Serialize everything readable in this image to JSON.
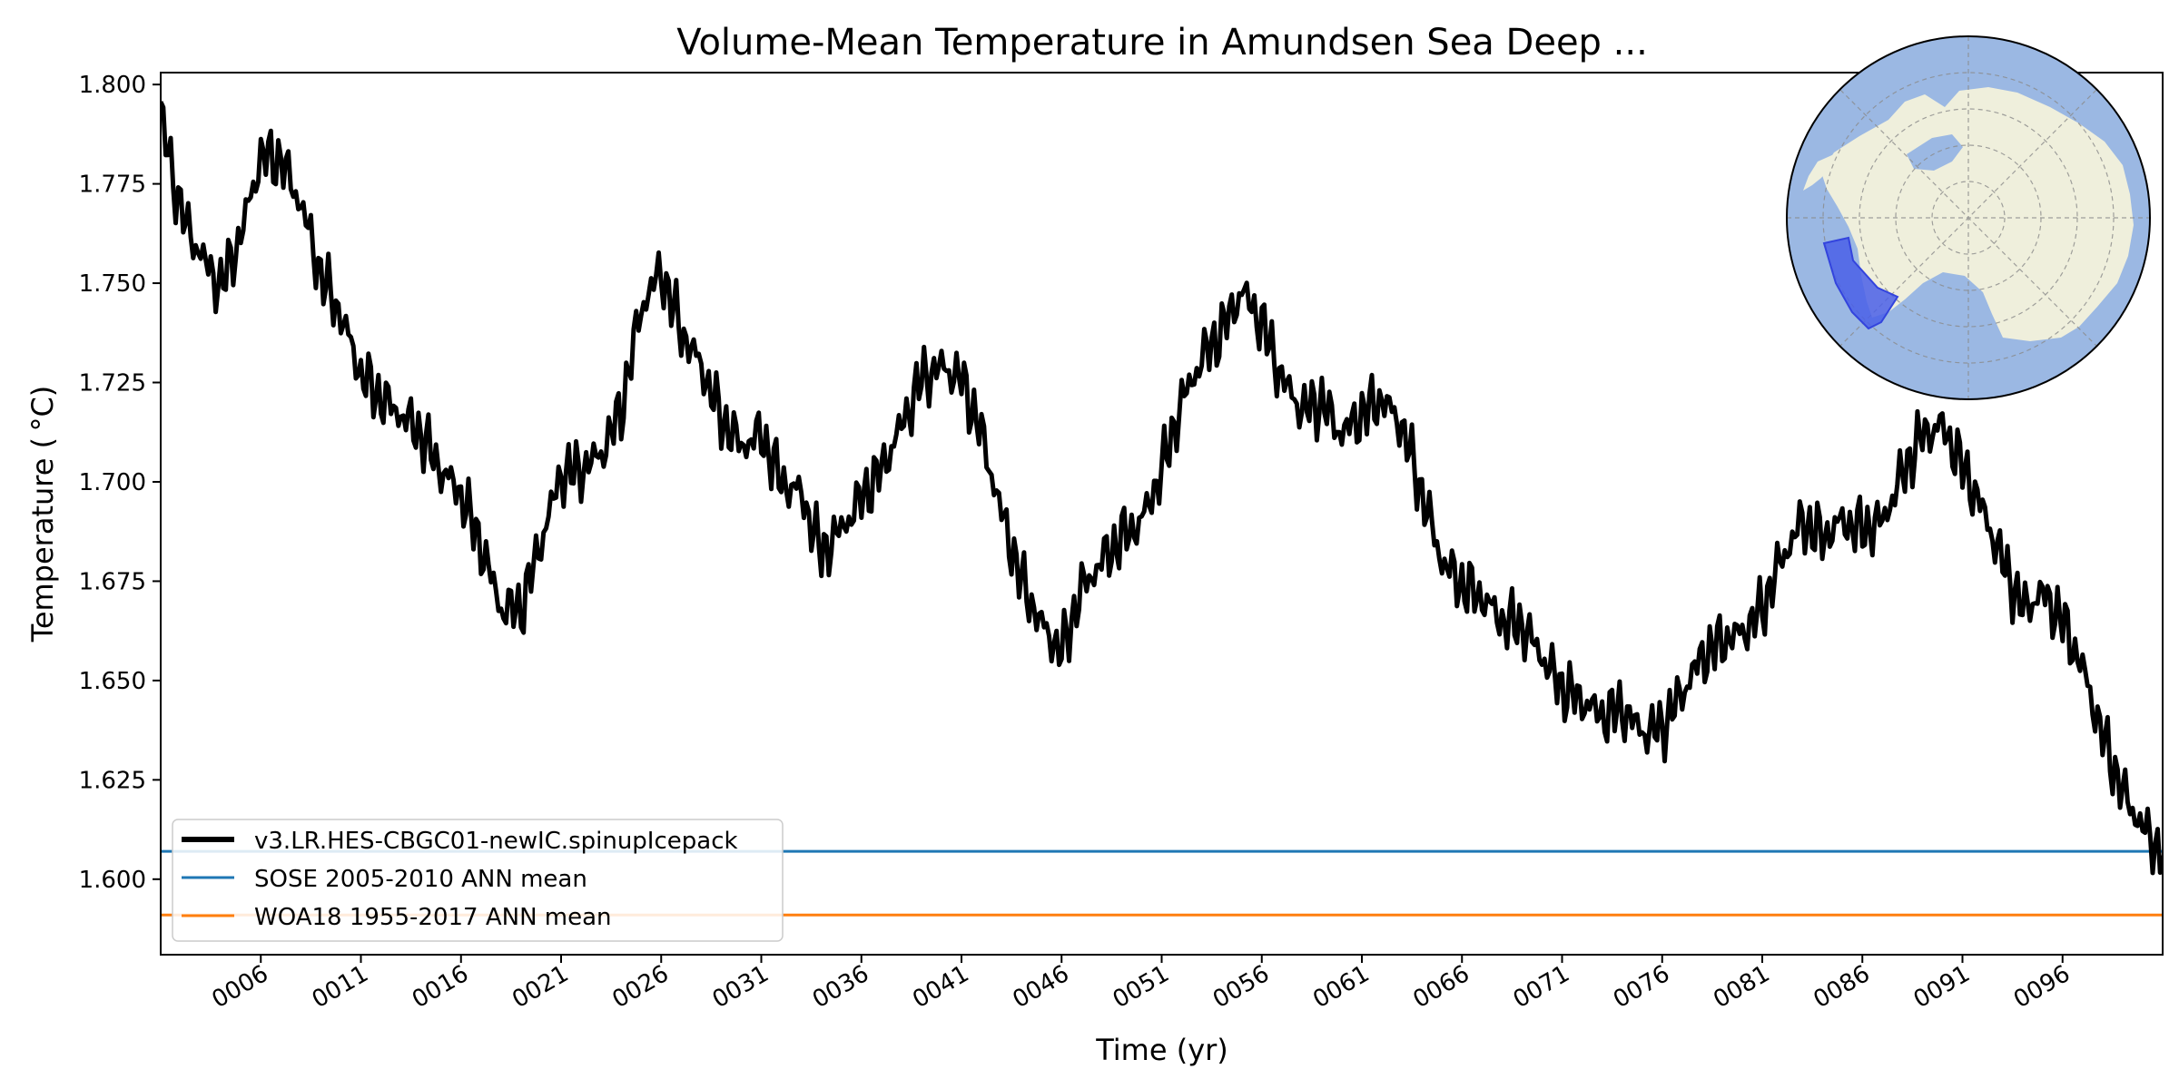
{
  "chart_data": {
    "type": "line",
    "title": "Volume-Mean Temperature in Amundsen Sea Deep ...",
    "xlabel": "Time (yr)",
    "ylabel": "Temperature ( °C)",
    "xlim": [
      1,
      101
    ],
    "ylim": [
      1.581,
      1.803
    ],
    "x_ticks": [
      6,
      11,
      16,
      21,
      26,
      31,
      36,
      41,
      46,
      51,
      56,
      61,
      66,
      71,
      76,
      81,
      86,
      91,
      96
    ],
    "x_tick_labels": [
      "0006",
      "0011",
      "0016",
      "0021",
      "0026",
      "0031",
      "0036",
      "0041",
      "0046",
      "0051",
      "0056",
      "0061",
      "0066",
      "0071",
      "0076",
      "0081",
      "0086",
      "0091",
      "0096"
    ],
    "y_ticks": [
      1.6,
      1.625,
      1.65,
      1.675,
      1.7,
      1.725,
      1.75,
      1.775,
      1.8
    ],
    "y_tick_labels": [
      "1.600",
      "1.625",
      "1.650",
      "1.675",
      "1.700",
      "1.725",
      "1.750",
      "1.775",
      "1.800"
    ],
    "grid": false,
    "legend_position": "lower-left",
    "series": [
      {
        "name": "v3.LR.HES-CBGC01-newIC.spinupIcepack",
        "color": "#000000",
        "x": [
          1,
          2,
          3,
          4,
          5,
          6,
          7,
          8,
          9,
          10,
          11,
          12,
          13,
          14,
          15,
          16,
          17,
          18,
          19,
          20,
          21,
          22,
          23,
          24,
          25,
          26,
          27,
          28,
          29,
          30,
          31,
          32,
          33,
          34,
          35,
          36,
          37,
          38,
          39,
          40,
          41,
          42,
          43,
          44,
          45,
          46,
          47,
          48,
          49,
          50,
          51,
          52,
          53,
          54,
          55,
          56,
          57,
          58,
          59,
          60,
          61,
          62,
          63,
          64,
          65,
          66,
          67,
          68,
          69,
          70,
          71,
          72,
          73,
          74,
          75,
          76,
          77,
          78,
          79,
          80,
          81,
          82,
          83,
          84,
          85,
          86,
          87,
          88,
          89,
          90,
          91,
          92,
          93,
          94,
          95,
          96,
          97,
          98,
          99,
          100,
          101
        ],
        "values": [
          1.792,
          1.768,
          1.757,
          1.749,
          1.762,
          1.782,
          1.781,
          1.77,
          1.752,
          1.742,
          1.727,
          1.721,
          1.717,
          1.712,
          1.703,
          1.697,
          1.684,
          1.668,
          1.668,
          1.685,
          1.702,
          1.703,
          1.707,
          1.718,
          1.744,
          1.753,
          1.738,
          1.729,
          1.716,
          1.709,
          1.712,
          1.7,
          1.697,
          1.682,
          1.688,
          1.696,
          1.703,
          1.714,
          1.726,
          1.729,
          1.726,
          1.712,
          1.692,
          1.675,
          1.664,
          1.657,
          1.673,
          1.68,
          1.686,
          1.69,
          1.703,
          1.72,
          1.731,
          1.738,
          1.748,
          1.74,
          1.726,
          1.718,
          1.72,
          1.712,
          1.717,
          1.721,
          1.714,
          1.697,
          1.68,
          1.674,
          1.671,
          1.665,
          1.664,
          1.656,
          1.648,
          1.645,
          1.641,
          1.643,
          1.637,
          1.638,
          1.647,
          1.656,
          1.66,
          1.662,
          1.668,
          1.681,
          1.69,
          1.686,
          1.69,
          1.688,
          1.69,
          1.702,
          1.712,
          1.714,
          1.704,
          1.693,
          1.68,
          1.668,
          1.672,
          1.665,
          1.653,
          1.636,
          1.622,
          1.613,
          1.606
        ]
      },
      {
        "name": "SOSE 2005-2010 ANN mean",
        "color": "#1f77b4",
        "constant": 1.607
      },
      {
        "name": "WOA18 1955-2017 ANN mean",
        "color": "#ff7f0e",
        "constant": 1.591
      }
    ],
    "inset_map": {
      "ocean_color": "#9bb8e3",
      "land_color": "#efefdc",
      "region_color": "#4a5fe8"
    }
  }
}
